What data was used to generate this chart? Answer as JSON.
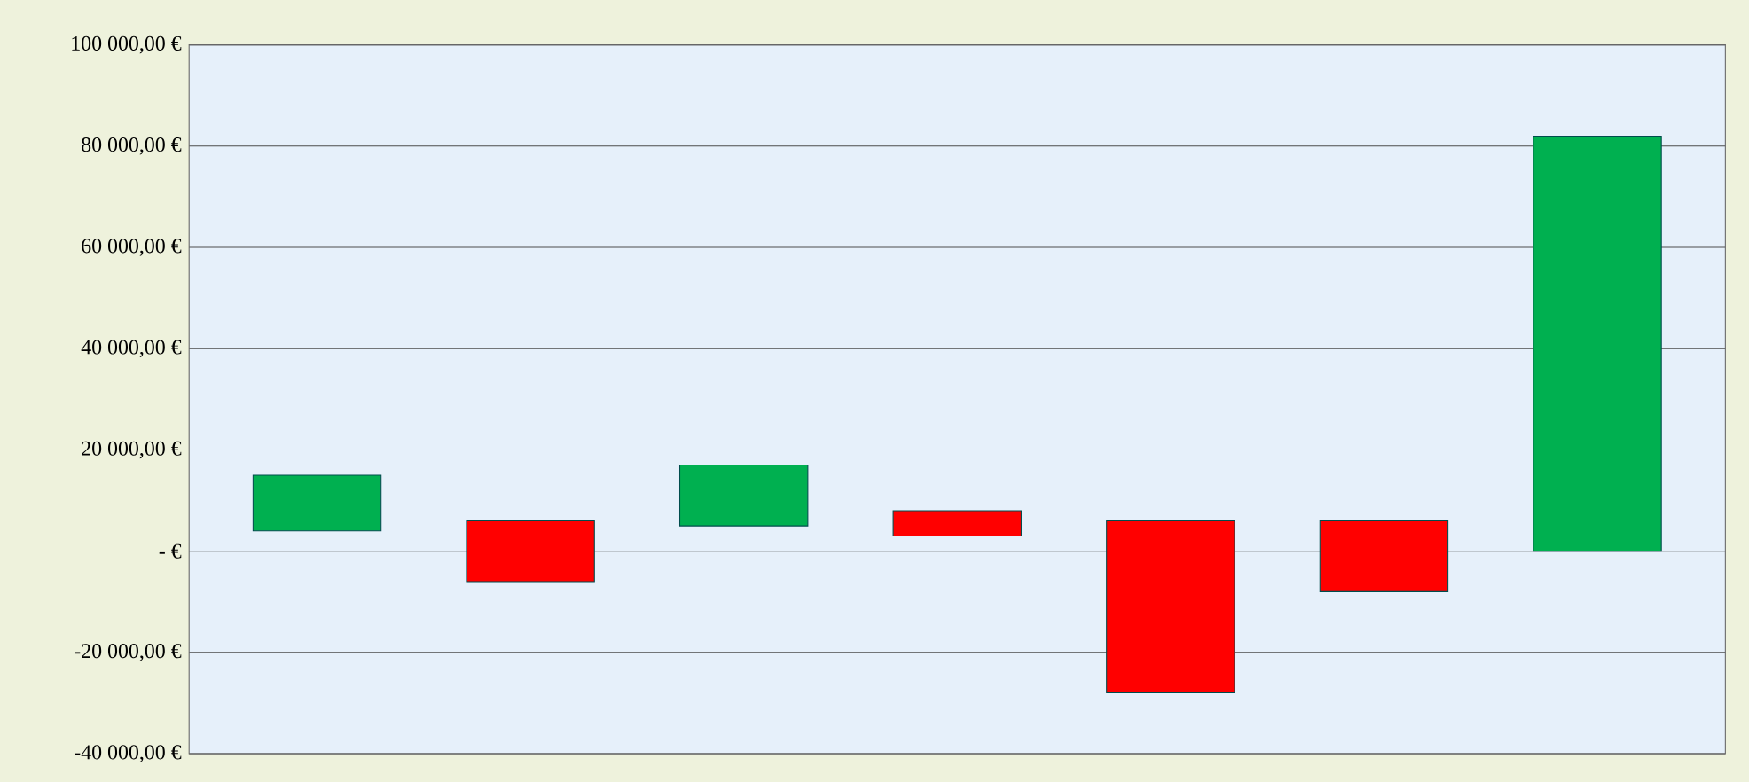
{
  "chart_data": {
    "type": "bar",
    "categories": [
      null,
      null,
      null,
      null,
      null,
      null,
      null
    ],
    "values": [
      11000,
      -12000,
      12000,
      -5000,
      -34000,
      -14000,
      82000
    ],
    "base": [
      4000,
      6000,
      5000,
      8000,
      6000,
      6000,
      0
    ],
    "colors": [
      "#00b050",
      "#ff0000",
      "#00b050",
      "#ff0000",
      "#ff0000",
      "#ff0000",
      "#00b050"
    ],
    "ylim": [
      -40000,
      100000
    ],
    "yticks": [
      {
        "value": -40000,
        "label": "-40 000,00 €"
      },
      {
        "value": -20000,
        "label": "-20 000,00 €"
      },
      {
        "value": 0,
        "label": "-  €"
      },
      {
        "value": 20000,
        "label": "20 000,00 €"
      },
      {
        "value": 40000,
        "label": "40 000,00 €"
      },
      {
        "value": 60000,
        "label": "60 000,00 €"
      },
      {
        "value": 80000,
        "label": "80 000,00 €"
      },
      {
        "value": 100000,
        "label": "100 000,00 €"
      }
    ],
    "grid": "y",
    "tick_labels": "y"
  }
}
